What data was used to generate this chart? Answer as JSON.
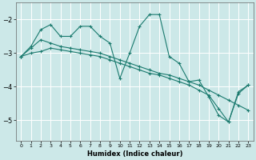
{
  "xlabel": "Humidex (Indice chaleur)",
  "background_color": "#cce8e8",
  "plot_bg_color": "#cce8e8",
  "line_color": "#1a7a6e",
  "grid_color": "#ffffff",
  "xlim": [
    -0.5,
    23.5
  ],
  "ylim": [
    -5.6,
    -1.5
  ],
  "yticks": [
    -5,
    -4,
    -3,
    -2
  ],
  "xticks": [
    0,
    1,
    2,
    3,
    4,
    5,
    6,
    7,
    8,
    9,
    10,
    11,
    12,
    13,
    14,
    15,
    16,
    17,
    18,
    19,
    20,
    21,
    22,
    23
  ],
  "line1_x": [
    0,
    1,
    2,
    3,
    4,
    5,
    6,
    7,
    8,
    9,
    10,
    11,
    12,
    13,
    14,
    15,
    16,
    17,
    18,
    19,
    20,
    21,
    22,
    23
  ],
  "line1_y": [
    -3.1,
    -2.8,
    -2.3,
    -2.15,
    -2.5,
    -2.5,
    -2.2,
    -2.2,
    -2.5,
    -2.7,
    -3.75,
    -3.0,
    -2.2,
    -1.85,
    -1.85,
    -3.1,
    -3.3,
    -3.85,
    -3.8,
    -4.3,
    -4.85,
    -5.05,
    -4.2,
    -3.95
  ],
  "line2_x": [
    0,
    1,
    2,
    3,
    4,
    5,
    6,
    7,
    8,
    9,
    10,
    11,
    12,
    13,
    14,
    15,
    16,
    17,
    18,
    19,
    20,
    21,
    22,
    23
  ],
  "line2_y": [
    -3.1,
    -2.85,
    -2.6,
    -2.7,
    -2.8,
    -2.85,
    -2.9,
    -2.95,
    -3.0,
    -3.1,
    -3.2,
    -3.3,
    -3.4,
    -3.5,
    -3.6,
    -3.65,
    -3.75,
    -3.85,
    -3.95,
    -4.1,
    -4.25,
    -4.4,
    -4.55,
    -4.7
  ],
  "line3_x": [
    0,
    1,
    2,
    3,
    4,
    5,
    6,
    7,
    8,
    9,
    10,
    11,
    12,
    13,
    14,
    15,
    16,
    17,
    18,
    19,
    20,
    21,
    22,
    23
  ],
  "line3_y": [
    -3.1,
    -3.0,
    -2.95,
    -2.85,
    -2.9,
    -2.95,
    -3.0,
    -3.05,
    -3.1,
    -3.2,
    -3.3,
    -3.4,
    -3.5,
    -3.6,
    -3.65,
    -3.75,
    -3.85,
    -3.95,
    -4.1,
    -4.25,
    -4.65,
    -5.05,
    -4.15,
    -3.95
  ]
}
